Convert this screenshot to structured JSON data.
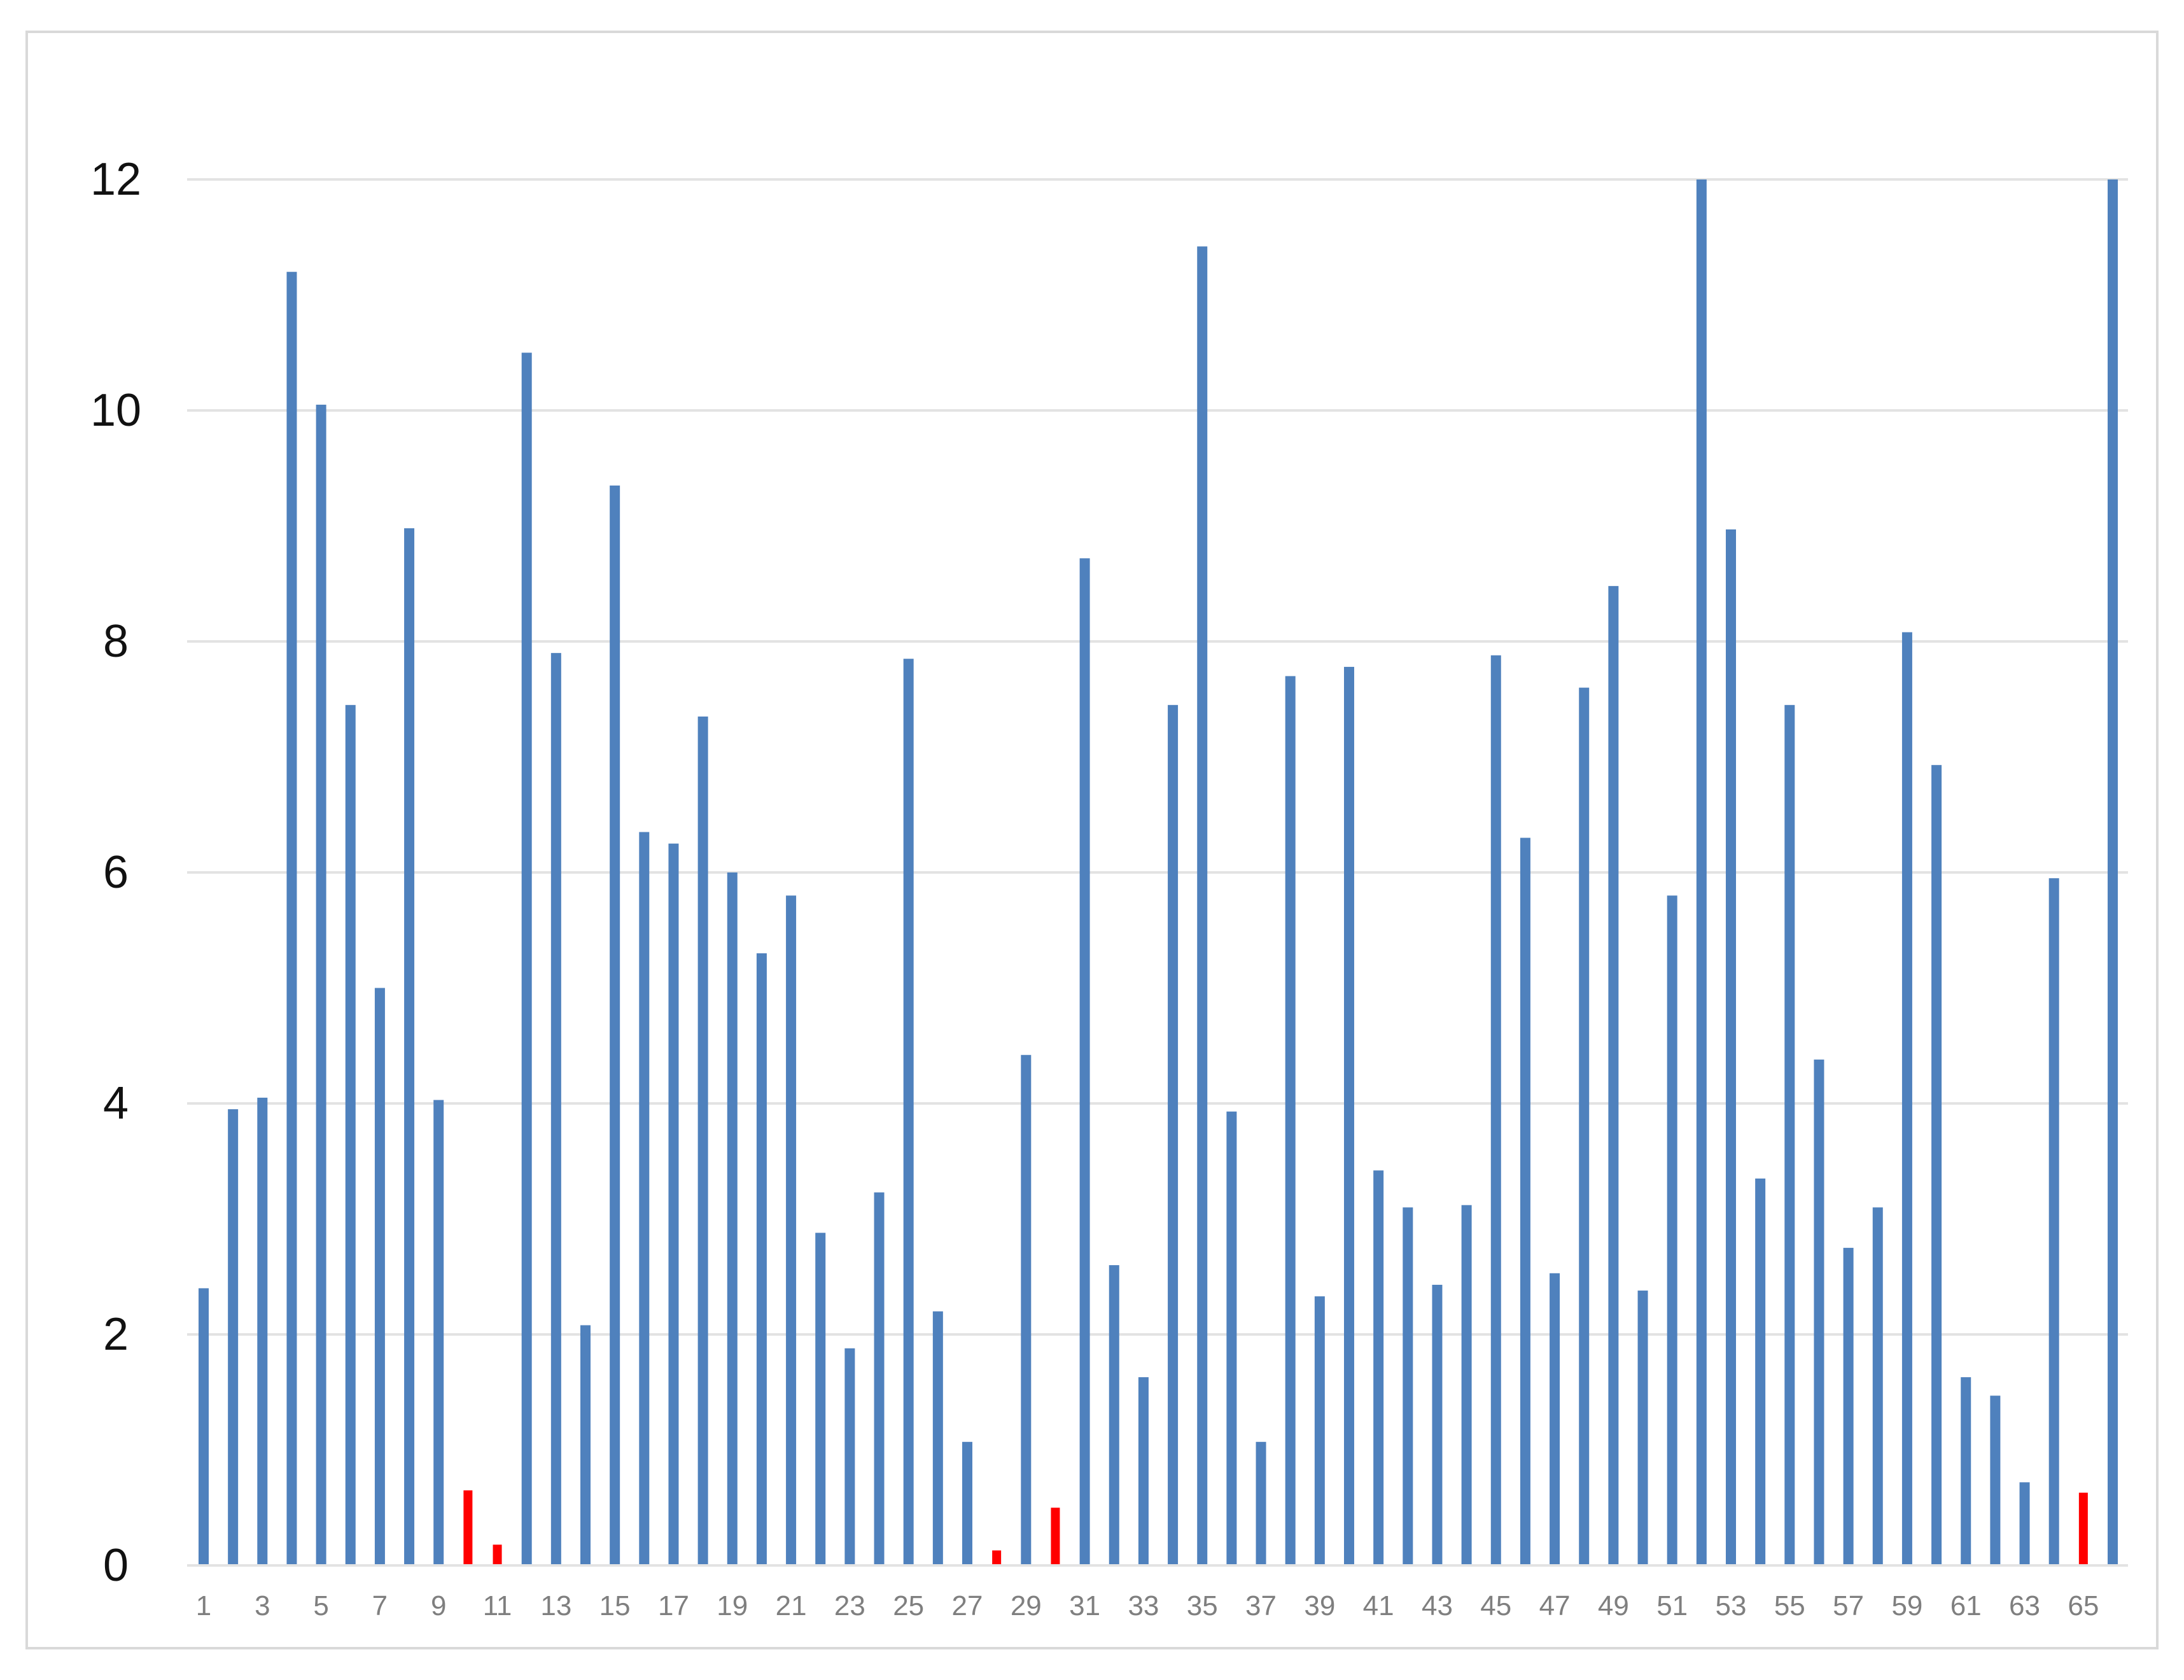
{
  "chart_data": {
    "type": "bar",
    "title": "",
    "xlabel": "",
    "ylabel": "",
    "ylim": [
      0,
      12
    ],
    "yticks": [
      0,
      2,
      4,
      6,
      8,
      10,
      12
    ],
    "grid": true,
    "legend": "none",
    "colors": {
      "primary": "#4f81bd",
      "highlight": "#ff0000",
      "grid": "#e3e3e3"
    },
    "x_tick_labels": [
      "1",
      "3",
      "5",
      "7",
      "9",
      "11",
      "13",
      "15",
      "17",
      "19",
      "21",
      "23",
      "25",
      "27",
      "29",
      "31",
      "33",
      "35",
      "37",
      "39",
      "41",
      "43",
      "45",
      "47",
      "49",
      "51",
      "53",
      "55",
      "57",
      "59",
      "61",
      "63",
      "65"
    ],
    "categories": [
      1,
      2,
      3,
      4,
      5,
      6,
      7,
      8,
      9,
      10,
      11,
      12,
      13,
      14,
      15,
      16,
      17,
      18,
      19,
      20,
      21,
      22,
      23,
      24,
      25,
      26,
      27,
      28,
      29,
      30,
      31,
      32,
      33,
      34,
      35,
      36,
      37,
      38,
      39,
      40,
      41,
      42,
      43,
      44,
      45,
      46,
      47,
      48,
      49,
      50,
      51,
      52,
      53,
      54,
      55,
      56,
      57,
      58,
      59,
      60,
      61,
      62,
      63,
      64,
      65,
      66
    ],
    "values": [
      2.4,
      3.95,
      4.05,
      11.2,
      10.05,
      7.45,
      5.0,
      8.98,
      4.03,
      0.65,
      0.18,
      10.5,
      7.9,
      2.08,
      9.35,
      6.35,
      6.25,
      7.35,
      6.0,
      5.3,
      5.8,
      2.88,
      1.88,
      3.23,
      7.85,
      2.2,
      1.07,
      0.13,
      4.42,
      0.5,
      8.72,
      2.6,
      1.63,
      7.45,
      11.42,
      3.93,
      1.07,
      7.7,
      2.33,
      7.78,
      3.42,
      3.1,
      2.43,
      3.12,
      7.88,
      6.3,
      2.53,
      7.6,
      8.48,
      2.38,
      5.8,
      12.0,
      8.97,
      3.35,
      7.45,
      4.38,
      2.75,
      3.1,
      8.08,
      6.93,
      1.63,
      1.47,
      0.72,
      5.95,
      0.63,
      12.0
    ],
    "highlighted": [
      10,
      11,
      28,
      30,
      65
    ]
  }
}
